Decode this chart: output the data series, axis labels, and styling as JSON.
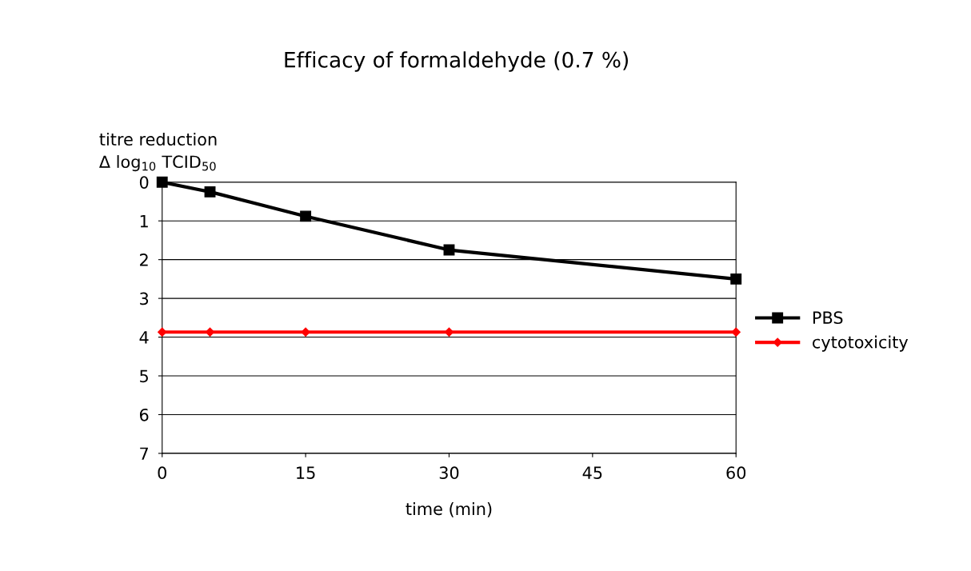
{
  "chart_data": {
    "type": "line",
    "title": "Efficacy of formaldehyde (0.7 %)",
    "xlabel": "time (min)",
    "ylabel": "titre reduction\nΔ log$_{10}$ TCID$_{50}$",
    "x": [
      0,
      5,
      15,
      30,
      60
    ],
    "series": [
      {
        "name": "PBS",
        "color": "#000000",
        "marker": "square",
        "values": [
          0,
          0.25,
          0.88,
          1.75,
          2.5
        ]
      },
      {
        "name": "cytotoxicity",
        "color": "#ff0000",
        "marker": "diamond",
        "values": [
          3.87,
          3.87,
          3.87,
          3.87,
          3.87
        ]
      }
    ],
    "xlim": [
      0,
      60
    ],
    "xticks": [
      0,
      15,
      30,
      45,
      60
    ],
    "ylim": [
      7,
      0
    ],
    "yticks": [
      0,
      1,
      2,
      3,
      4,
      5,
      6,
      7
    ],
    "grid": "y",
    "legend": "right",
    "line_style": "solid"
  }
}
